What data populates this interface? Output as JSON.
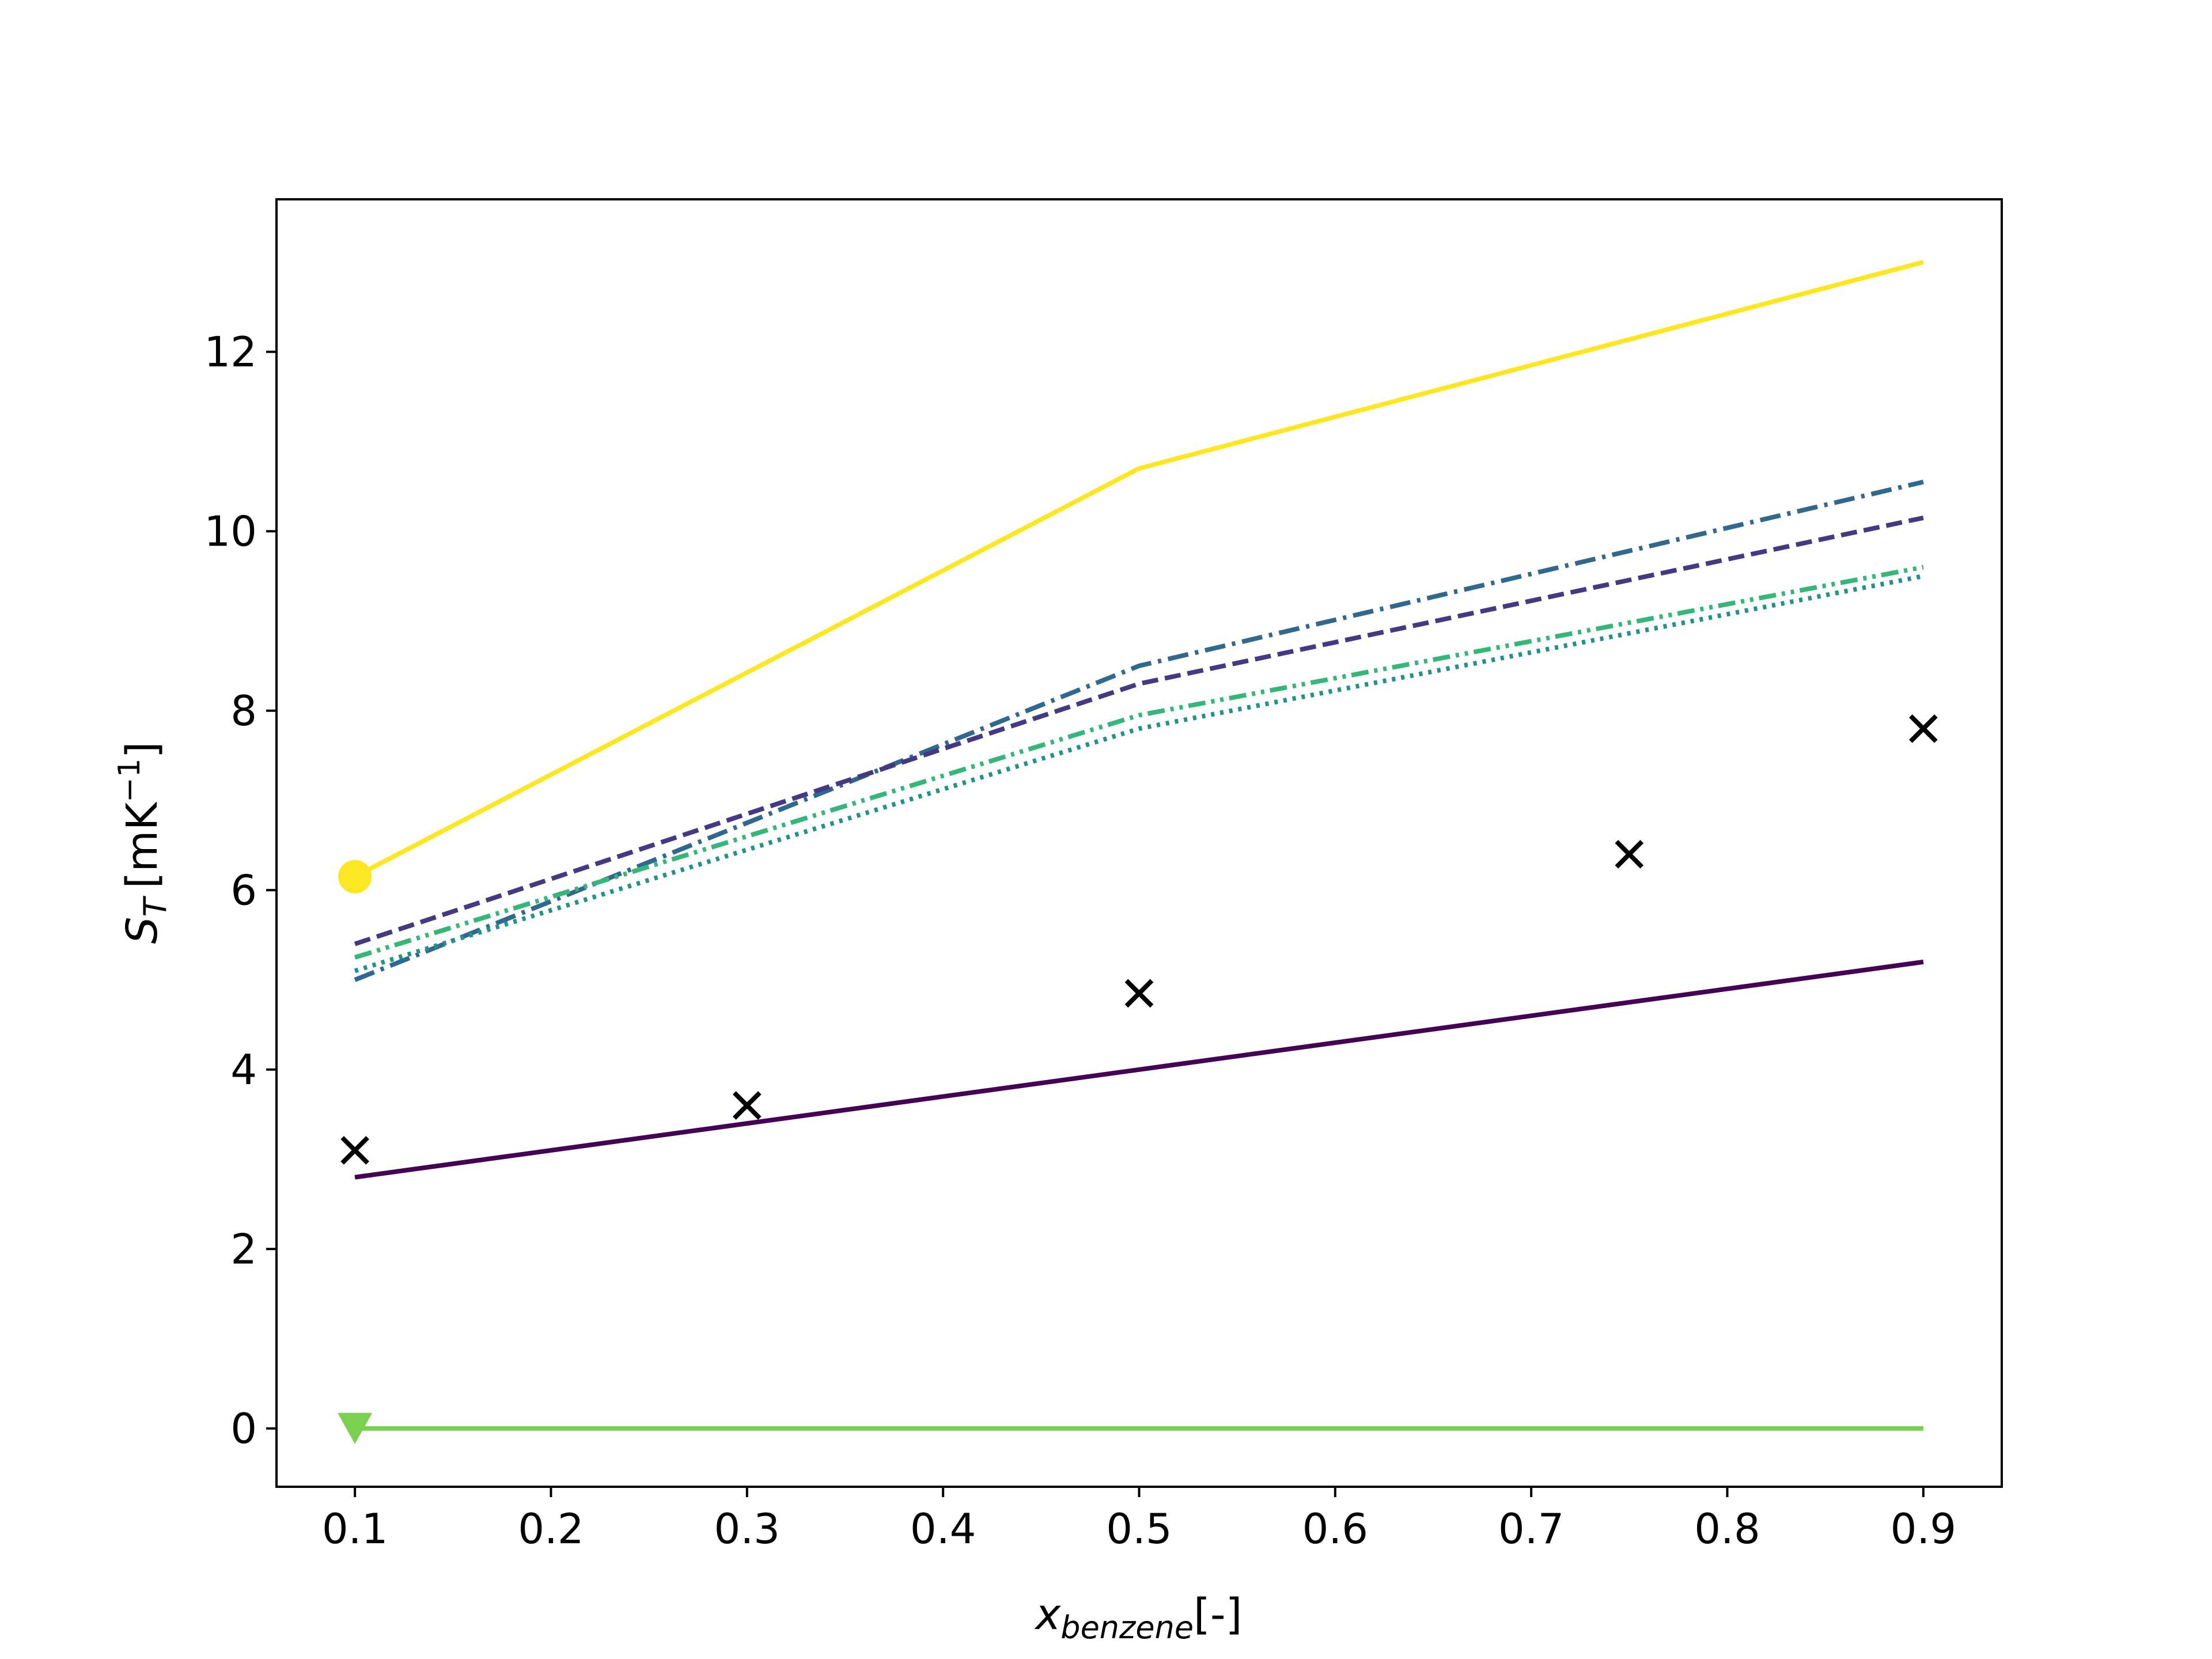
{
  "chart_data": {
    "type": "line",
    "title": "",
    "xlabel": {
      "main": "x",
      "sub": "benzene",
      "suffix": "[-]"
    },
    "ylabel": {
      "main": "S",
      "sub": "T",
      "unit_prefix": "[mK",
      "unit_sup": "−1",
      "unit_suffix": "]"
    },
    "xlim": [
      0.06,
      0.94
    ],
    "ylim": [
      -0.65,
      13.7
    ],
    "xticks": [
      0.1,
      0.2,
      0.3,
      0.4,
      0.5,
      0.6,
      0.7,
      0.8,
      0.9
    ],
    "xtick_labels": [
      "0.1",
      "0.2",
      "0.3",
      "0.4",
      "0.5",
      "0.6",
      "0.7",
      "0.8",
      "0.9"
    ],
    "yticks": [
      0,
      2,
      4,
      6,
      8,
      10,
      12
    ],
    "ytick_labels": [
      "0",
      "2",
      "4",
      "6",
      "8",
      "10",
      "12"
    ],
    "grid": false,
    "x": [
      0.1,
      0.5,
      0.9
    ],
    "series": [
      {
        "values": [
          6.15,
          10.7,
          13.0
        ],
        "color": "#fde725",
        "style": "solid",
        "marker": "circle-at-first"
      },
      {
        "values": [
          5.0,
          8.5,
          10.55
        ],
        "color": "#31688e",
        "style": "dashdot"
      },
      {
        "values": [
          5.4,
          8.3,
          10.15
        ],
        "color": "#443983",
        "style": "dashed"
      },
      {
        "values": [
          5.25,
          7.95,
          9.6
        ],
        "color": "#35b779",
        "style": "dashdotdot"
      },
      {
        "values": [
          5.1,
          7.8,
          9.5
        ],
        "color": "#21918c",
        "style": "dotted"
      },
      {
        "values": [
          2.8,
          4.0,
          5.2
        ],
        "color": "#440154",
        "style": "solid"
      },
      {
        "values": [
          0.0,
          0.0,
          0.0
        ],
        "color": "#7ad151",
        "style": "solid",
        "marker": "triangle-down-at-first"
      }
    ],
    "scatter": {
      "x": [
        0.1,
        0.3,
        0.5,
        0.75,
        0.9
      ],
      "y": [
        3.1,
        3.6,
        4.85,
        6.4,
        7.8
      ],
      "marker": "x",
      "color": "#000000"
    }
  }
}
